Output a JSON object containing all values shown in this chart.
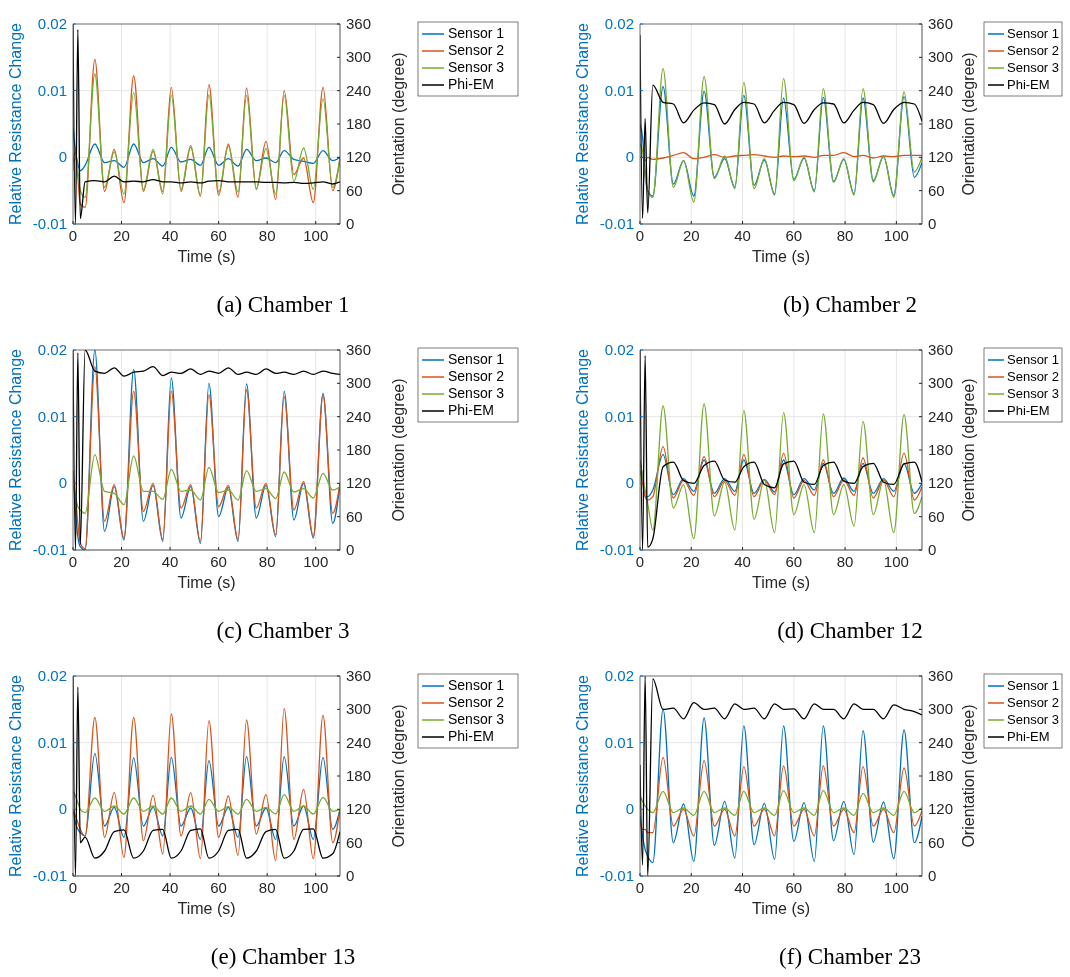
{
  "chart_data": [
    {
      "type": "line",
      "x": [
        0,
        1,
        2,
        3,
        5,
        9,
        13,
        17,
        21,
        25,
        29,
        33,
        37,
        40.5,
        44.5,
        48.5,
        52.5,
        56,
        60,
        64,
        68,
        71.5,
        75.5,
        79.5,
        83.5,
        87,
        91,
        95,
        99,
        103,
        107,
        110
      ],
      "xlabel": "Time (s)",
      "ylabel": "Relative Resistance Change",
      "y2label": "Orientation (degree)",
      "xlim": [
        0,
        110
      ],
      "xticks": [
        0,
        20,
        40,
        60,
        80,
        100
      ],
      "ylim": [
        -0.01,
        0.02
      ],
      "yticks": [
        -0.01,
        0,
        0.01,
        0.02
      ],
      "y2lim": [
        0,
        360
      ],
      "y2ticks": [
        0,
        60,
        120,
        180,
        240,
        300,
        360
      ],
      "grid": true,
      "legend": "top right",
      "annotations": [
        "(a) Chamber 1"
      ],
      "series": [
        {
          "name": "Sensor 1",
          "color": "#0072bd",
          "values": [
            0.0045,
            0.001,
            -0.001,
            -0.002,
            -0.0012,
            0.002,
            -0.0008,
            -0.0005,
            -0.0015,
            0.002,
            -0.0008,
            -0.0002,
            -0.0013,
            0.0015,
            -0.0007,
            -0.0003,
            -0.0012,
            0.0015,
            -0.0012,
            -0.0002,
            -0.0013,
            0.0012,
            -0.0005,
            -0.0001,
            -0.0008,
            0.001,
            -0.0003,
            -0.0006,
            -0.0009,
            0.001,
            -0.0005,
            0
          ]
        },
        {
          "name": "Sensor 2",
          "color": "#d95319",
          "values": [
            -0.001,
            0.001,
            -0.003,
            -0.007,
            -0.0075,
            0.0147,
            -0.0051,
            0.0012,
            -0.0068,
            0.0122,
            -0.0051,
            0.0009,
            -0.0051,
            0.0105,
            -0.0051,
            0.0015,
            -0.0058,
            0.0109,
            -0.0057,
            0.002,
            -0.006,
            0.0104,
            -0.0048,
            0.0024,
            -0.0063,
            0.01,
            -0.0026,
            -0.0001,
            -0.0068,
            0.0105,
            -0.005,
            0
          ]
        },
        {
          "name": "Sensor 3",
          "color": "#77ac30",
          "values": [
            -0.002,
            0,
            -0.002,
            -0.005,
            -0.006,
            0.0125,
            -0.0045,
            0.0008,
            -0.0055,
            0.0097,
            -0.0048,
            0.0012,
            -0.0055,
            0.0093,
            -0.0048,
            0.0018,
            -0.0058,
            0.0094,
            -0.0052,
            0.0017,
            -0.0052,
            0.0093,
            -0.0047,
            0.0013,
            -0.0055,
            0.0093,
            -0.0036,
            0.0014,
            -0.0048,
            0.0088,
            -0.0045,
            -0.0003
          ]
        },
        {
          "name": "Phi-EM",
          "color": "#000000",
          "axis": "y2",
          "values": [
            360,
            0,
            350,
            10,
            76,
            78,
            76,
            86,
            76,
            77,
            76,
            80,
            76,
            76,
            74,
            76,
            74,
            77,
            78,
            76,
            76,
            76,
            76,
            75,
            75,
            74,
            75,
            73,
            74,
            76,
            72,
            76
          ]
        }
      ]
    },
    {
      "type": "line",
      "x": [
        0,
        1,
        2,
        3,
        5,
        9,
        13,
        17,
        21,
        25,
        29,
        33,
        37,
        40.5,
        44.5,
        48.5,
        52.5,
        56,
        60,
        64,
        68,
        71.5,
        75.5,
        79.5,
        83.5,
        87,
        91,
        95,
        99,
        103,
        107,
        110
      ],
      "xlabel": "Time (s)",
      "ylabel": "Relative Resistance Change",
      "y2label": "Orientation (degree)",
      "xlim": [
        0,
        110
      ],
      "xticks": [
        0,
        20,
        40,
        60,
        80,
        100
      ],
      "ylim": [
        -0.01,
        0.02
      ],
      "yticks": [
        -0.01,
        0,
        0.01,
        0.02
      ],
      "y2lim": [
        0,
        360
      ],
      "y2ticks": [
        0,
        60,
        120,
        180,
        240,
        300,
        360
      ],
      "grid": true,
      "legend": "top right",
      "annotations": [
        "(b) Chamber 2"
      ],
      "series": [
        {
          "name": "Sensor 1",
          "color": "#0072bd",
          "values": [
            0.005,
            0.003,
            -0.002,
            -0.005,
            -0.0058,
            0.0106,
            -0.004,
            -0.0005,
            -0.0058,
            0.0099,
            -0.003,
            -0.0002,
            -0.0045,
            0.0093,
            -0.0042,
            -0.0004,
            -0.0055,
            0.0089,
            -0.0033,
            -0.0001,
            -0.005,
            0.009,
            -0.0036,
            -0.0003,
            -0.0055,
            0.0089,
            -0.0035,
            0.0001,
            -0.0057,
            0.0091,
            -0.003,
            -0.0008
          ]
        },
        {
          "name": "Sensor 2",
          "color": "#d95319",
          "values": [
            0,
            0,
            -0.0005,
            0,
            -0.0003,
            -0.0001,
            0.0003,
            0.0007,
            -0.0002,
            0,
            0.0004,
            0,
            0.0002,
            0.0003,
            0.0004,
            0.0002,
            0,
            0.0002,
            0.0001,
            0.0002,
            0,
            0.0003,
            0.0003,
            0.0007,
            0.0001,
            0.0003,
            -0.0001,
            0.0002,
            0.0001,
            0.0003,
            0.0003,
            0.0003
          ]
        },
        {
          "name": "Sensor 3",
          "color": "#77ac30",
          "values": [
            0.002,
            0.001,
            -0.003,
            -0.005,
            -0.006,
            0.0133,
            -0.0045,
            -0.0005,
            -0.0067,
            0.0121,
            -0.0032,
            0.0002,
            -0.0047,
            0.0112,
            -0.0047,
            -0.0002,
            -0.0057,
            0.0118,
            -0.0035,
            0,
            -0.0052,
            0.0103,
            -0.0038,
            -0.0002,
            -0.0057,
            0.0103,
            -0.0037,
            0.0002,
            -0.006,
            0.0098,
            -0.0022,
            0
          ]
        },
        {
          "name": "Phi-EM",
          "color": "#000000",
          "axis": "y2",
          "values": [
            340,
            10,
            190,
            20,
            250,
            219,
            216,
            182,
            205,
            218,
            215,
            180,
            206,
            219,
            216,
            182,
            205,
            219,
            215,
            181,
            206,
            218,
            216,
            182,
            205,
            219,
            215,
            181,
            206,
            219,
            216,
            185
          ]
        }
      ]
    },
    {
      "type": "line",
      "x": [
        0,
        1,
        2,
        3,
        5,
        9,
        13,
        17,
        21,
        25,
        29,
        33,
        37,
        40.5,
        44.5,
        48.5,
        52.5,
        56,
        60,
        64,
        68,
        71.5,
        75.5,
        79.5,
        83.5,
        87,
        91,
        95,
        99,
        103,
        107,
        110
      ],
      "xlabel": "Time (s)",
      "ylabel": "Relative Resistance Change",
      "y2label": "Orientation (degree)",
      "xlim": [
        0,
        110
      ],
      "xticks": [
        0,
        20,
        40,
        60,
        80,
        100
      ],
      "ylim": [
        -0.01,
        0.02
      ],
      "yticks": [
        -0.01,
        0,
        0.01,
        0.02
      ],
      "y2lim": [
        0,
        360
      ],
      "y2ticks": [
        0,
        60,
        120,
        180,
        240,
        300,
        360
      ],
      "grid": true,
      "legend": "top right",
      "annotations": [
        "(c) Chamber 3"
      ],
      "series": [
        {
          "name": "Sensor 1",
          "color": "#0072bd",
          "values": [
            0.002,
            -0.004,
            -0.008,
            -0.0095,
            -0.01,
            0.02,
            -0.0072,
            -0.0005,
            -0.0085,
            0.0171,
            -0.0057,
            -0.0003,
            -0.0087,
            0.0158,
            -0.0052,
            -0.0005,
            -0.009,
            0.015,
            -0.005,
            -0.0006,
            -0.0087,
            0.0149,
            -0.0052,
            -0.0003,
            -0.008,
            0.0138,
            -0.0055,
            0,
            -0.0082,
            0.0135,
            -0.006,
            0
          ]
        },
        {
          "name": "Sensor 2",
          "color": "#d95319",
          "values": [
            0.0013,
            -0.002,
            -0.006,
            -0.009,
            -0.0098,
            0.0175,
            -0.0057,
            -0.0002,
            -0.0082,
            0.0138,
            -0.0042,
            0,
            -0.0084,
            0.0138,
            -0.0037,
            -0.0002,
            -0.0087,
            0.0133,
            -0.0035,
            -0.0003,
            -0.0084,
            0.014,
            -0.0037,
            0,
            -0.0077,
            0.013,
            -0.004,
            0.0003,
            -0.0079,
            0.0132,
            -0.0045,
            0
          ]
        },
        {
          "name": "Sensor 3",
          "color": "#77ac30",
          "values": [
            0,
            -0.002,
            -0.0035,
            -0.004,
            -0.0045,
            0.0043,
            -0.0012,
            -0.0015,
            -0.0032,
            0.0041,
            -0.0012,
            -0.0012,
            -0.0024,
            0.0021,
            -0.0012,
            -0.001,
            -0.0025,
            0.0024,
            -0.0014,
            -0.001,
            -0.0025,
            0.0019,
            -0.0012,
            -0.0008,
            -0.0023,
            0.0017,
            -0.0013,
            -0.0008,
            -0.0022,
            0.0015,
            -0.001,
            -0.0005
          ]
        },
        {
          "name": "Phi-EM",
          "color": "#000000",
          "axis": "y2",
          "values": [
            360,
            0,
            355,
            10,
            360,
            322,
            318,
            328,
            313,
            320,
            322,
            330,
            314,
            320,
            318,
            326,
            316,
            322,
            318,
            328,
            316,
            320,
            316,
            326,
            318,
            320,
            316,
            322,
            316,
            322,
            318,
            316
          ]
        }
      ]
    },
    {
      "type": "line",
      "x": [
        0,
        1,
        2,
        3,
        5,
        9,
        13,
        17,
        21,
        25,
        29,
        33,
        37,
        40.5,
        44.5,
        48.5,
        52.5,
        56,
        60,
        64,
        68,
        71.5,
        75.5,
        79.5,
        83.5,
        87,
        91,
        95,
        99,
        103,
        107,
        110
      ],
      "xlabel": "Time (s)",
      "ylabel": "Relative Resistance Change",
      "y2label": "Orientation (degree)",
      "xlim": [
        0,
        110
      ],
      "xticks": [
        0,
        20,
        40,
        60,
        80,
        100
      ],
      "ylim": [
        -0.01,
        0.02
      ],
      "yticks": [
        -0.01,
        0,
        0.01,
        0.02
      ],
      "y2lim": [
        0,
        360
      ],
      "y2ticks": [
        0,
        60,
        120,
        180,
        240,
        300,
        360
      ],
      "grid": true,
      "legend": "top right",
      "annotations": [
        "(d) Chamber 12"
      ],
      "series": [
        {
          "name": "Sensor 1",
          "color": "#0072bd",
          "values": [
            0.0035,
            0.001,
            -0.002,
            -0.002,
            -0.001,
            0.0043,
            -0.0017,
            0.0007,
            -0.0012,
            0.0035,
            -0.0015,
            0.0007,
            -0.0012,
            0.0035,
            -0.0015,
            0.0006,
            -0.0013,
            0.0035,
            -0.0017,
            0.0007,
            -0.001,
            0.003,
            -0.0015,
            0.0008,
            -0.0012,
            0.003,
            -0.0015,
            0.0007,
            -0.0012,
            0.003,
            -0.0015,
            0
          ]
        },
        {
          "name": "Sensor 2",
          "color": "#d95319",
          "values": [
            0.002,
            0,
            -0.002,
            -0.0025,
            -0.002,
            0.0055,
            -0.0022,
            0.0005,
            -0.0018,
            0.004,
            -0.002,
            0.0004,
            -0.0018,
            0.0043,
            -0.002,
            0.0005,
            -0.0017,
            0.0045,
            -0.0022,
            0.0004,
            -0.0018,
            0.0035,
            -0.002,
            0.0005,
            -0.0018,
            0.0038,
            -0.0022,
            0.0005,
            -0.002,
            0.0045,
            -0.0025,
            -0.0005
          ]
        },
        {
          "name": "Sensor 3",
          "color": "#77ac30",
          "values": [
            0.0035,
            0.001,
            -0.001,
            -0.003,
            -0.007,
            0.0116,
            -0.0037,
            -0.0002,
            -0.0083,
            0.0119,
            -0.0049,
            0.0002,
            -0.007,
            0.0109,
            -0.0054,
            0.0005,
            -0.0074,
            0.0106,
            -0.0047,
            -0.0002,
            -0.0074,
            0.0104,
            -0.0047,
            -0.0002,
            -0.0064,
            0.0093,
            -0.0047,
            0.0005,
            -0.0074,
            0.0103,
            -0.0045,
            -0.002
          ]
        },
        {
          "name": "Phi-EM",
          "color": "#000000",
          "axis": "y2",
          "values": [
            360,
            0,
            350,
            5,
            20,
            150,
            158,
            125,
            120,
            152,
            160,
            126,
            122,
            150,
            158,
            118,
            112,
            155,
            160,
            122,
            118,
            152,
            158,
            124,
            120,
            150,
            156,
            122,
            118,
            155,
            158,
            122
          ]
        }
      ]
    },
    {
      "type": "line",
      "x": [
        0,
        1,
        2,
        3,
        5,
        9,
        13,
        17,
        21,
        25,
        29,
        33,
        37,
        40.5,
        44.5,
        48.5,
        52.5,
        56,
        60,
        64,
        68,
        71.5,
        75.5,
        79.5,
        83.5,
        87,
        91,
        95,
        99,
        103,
        107,
        110
      ],
      "xlabel": "Time (s)",
      "ylabel": "Relative Resistance Change",
      "y2label": "Orientation (degree)",
      "xlim": [
        0,
        110
      ],
      "xticks": [
        0,
        20,
        40,
        60,
        80,
        100
      ],
      "ylim": [
        -0.01,
        0.02
      ],
      "yticks": [
        -0.01,
        0,
        0.01,
        0.02
      ],
      "y2lim": [
        0,
        360
      ],
      "y2ticks": [
        0,
        60,
        120,
        180,
        240,
        300,
        360
      ],
      "grid": true,
      "legend": "top right",
      "annotations": [
        "(e) Chamber 13"
      ],
      "series": [
        {
          "name": "Sensor 1",
          "color": "#0072bd",
          "values": [
            0,
            -0.002,
            -0.003,
            -0.0035,
            -0.004,
            0.0084,
            -0.0025,
            0.0003,
            -0.0042,
            0.0077,
            -0.0025,
            0.0003,
            -0.004,
            0.0078,
            -0.0025,
            0.0002,
            -0.0045,
            0.0073,
            -0.0025,
            0.0003,
            -0.0042,
            0.0079,
            -0.0025,
            0.0002,
            -0.0045,
            0.0079,
            -0.0025,
            0.0005,
            -0.0045,
            0.0078,
            -0.003,
            0
          ]
        },
        {
          "name": "Sensor 2",
          "color": "#d95319",
          "values": [
            0,
            -0.001,
            -0.002,
            -0.003,
            -0.004,
            0.0138,
            -0.0042,
            0.0025,
            -0.0072,
            0.0138,
            -0.0047,
            0.0021,
            -0.0067,
            0.0143,
            -0.004,
            0.0025,
            -0.0074,
            0.0133,
            -0.0042,
            0.002,
            -0.0069,
            0.0134,
            -0.0037,
            0.0022,
            -0.0077,
            0.0151,
            -0.0045,
            0.003,
            -0.0074,
            0.0141,
            -0.005,
            0
          ]
        },
        {
          "name": "Sensor 3",
          "color": "#77ac30",
          "values": [
            0.0027,
            0.002,
            0.001,
            0,
            -0.0005,
            0.0017,
            -0.0003,
            0.0005,
            -0.0007,
            0.0017,
            -0.0003,
            0.0005,
            -0.0007,
            0.0017,
            -0.0003,
            0.0005,
            -0.0007,
            0.0015,
            -0.0003,
            0.0004,
            -0.0007,
            0.0015,
            -0.0003,
            0.0003,
            -0.0007,
            0.0022,
            -0.0003,
            0.0005,
            -0.0007,
            0.0018,
            -0.0003,
            0
          ]
        },
        {
          "name": "Phi-EM",
          "color": "#000000",
          "axis": "y2",
          "values": [
            360,
            0,
            340,
            60,
            70,
            32,
            45,
            80,
            83,
            32,
            45,
            82,
            84,
            32,
            45,
            82,
            85,
            32,
            45,
            82,
            84,
            32,
            45,
            80,
            84,
            32,
            45,
            84,
            85,
            32,
            40,
            80
          ]
        }
      ]
    },
    {
      "type": "line",
      "x": [
        0,
        1,
        2,
        3,
        5,
        9,
        13,
        17,
        21,
        25,
        29,
        33,
        37,
        40.5,
        44.5,
        48.5,
        52.5,
        56,
        60,
        64,
        68,
        71.5,
        75.5,
        79.5,
        83.5,
        87,
        91,
        95,
        99,
        103,
        107,
        110
      ],
      "xlabel": "Time (s)",
      "ylabel": "Relative Resistance Change",
      "y2label": "Orientation (degree)",
      "xlim": [
        0,
        110
      ],
      "xticks": [
        0,
        20,
        40,
        60,
        80,
        100
      ],
      "ylim": [
        -0.01,
        0.02
      ],
      "yticks": [
        -0.01,
        0,
        0.01,
        0.02
      ],
      "y2lim": [
        0,
        360
      ],
      "y2ticks": [
        0,
        60,
        120,
        180,
        240,
        300,
        360
      ],
      "grid": true,
      "legend": "top right",
      "annotations": [
        "(f) Chamber 23"
      ],
      "series": [
        {
          "name": "Sensor 1",
          "color": "#0072bd",
          "values": [
            -0.001,
            -0.004,
            -0.006,
            -0.007,
            -0.008,
            0.015,
            -0.005,
            0.0008,
            -0.0078,
            0.0137,
            -0.0054,
            0.0012,
            -0.0073,
            0.0125,
            -0.0053,
            0.0009,
            -0.0075,
            0.0125,
            -0.0048,
            0.001,
            -0.0078,
            0.0125,
            -0.0047,
            0.0012,
            -0.0068,
            0.0118,
            -0.0049,
            0.0011,
            -0.0074,
            0.0119,
            -0.005,
            -0.001
          ]
        },
        {
          "name": "Sensor 2",
          "color": "#d95319",
          "values": [
            -0.002,
            -0.003,
            -0.003,
            -0.0035,
            -0.0035,
            0.0078,
            -0.0025,
            0,
            -0.004,
            0.0073,
            -0.0025,
            0,
            -0.004,
            0.0064,
            -0.0025,
            0,
            -0.004,
            0.0065,
            -0.0025,
            0,
            -0.004,
            0.0065,
            -0.0025,
            0,
            -0.0035,
            0.0064,
            -0.0025,
            0,
            -0.0035,
            0.0062,
            -0.0025,
            -0.0002
          ]
        },
        {
          "name": "Sensor 3",
          "color": "#77ac30",
          "values": [
            0.002,
            0.0012,
            0.0005,
            0,
            -0.0005,
            0.0027,
            -0.0005,
            0.0002,
            -0.0009,
            0.0027,
            -0.0005,
            0.0002,
            -0.0009,
            0.0027,
            -0.0005,
            0.0002,
            -0.0009,
            0.0028,
            -0.0005,
            0.0002,
            -0.0009,
            0.0028,
            -0.0005,
            0.0002,
            -0.0009,
            0.0024,
            -0.0005,
            0.0002,
            -0.0009,
            0.0027,
            -0.0005,
            0.0003
          ]
        },
        {
          "name": "Phi-EM",
          "color": "#000000",
          "axis": "y2",
          "values": [
            200,
            20,
            360,
            0,
            355,
            300,
            302,
            283,
            312,
            300,
            302,
            283,
            310,
            300,
            302,
            283,
            310,
            300,
            301,
            283,
            310,
            300,
            300,
            283,
            310,
            300,
            300,
            283,
            308,
            300,
            296,
            290
          ]
        }
      ]
    }
  ]
}
